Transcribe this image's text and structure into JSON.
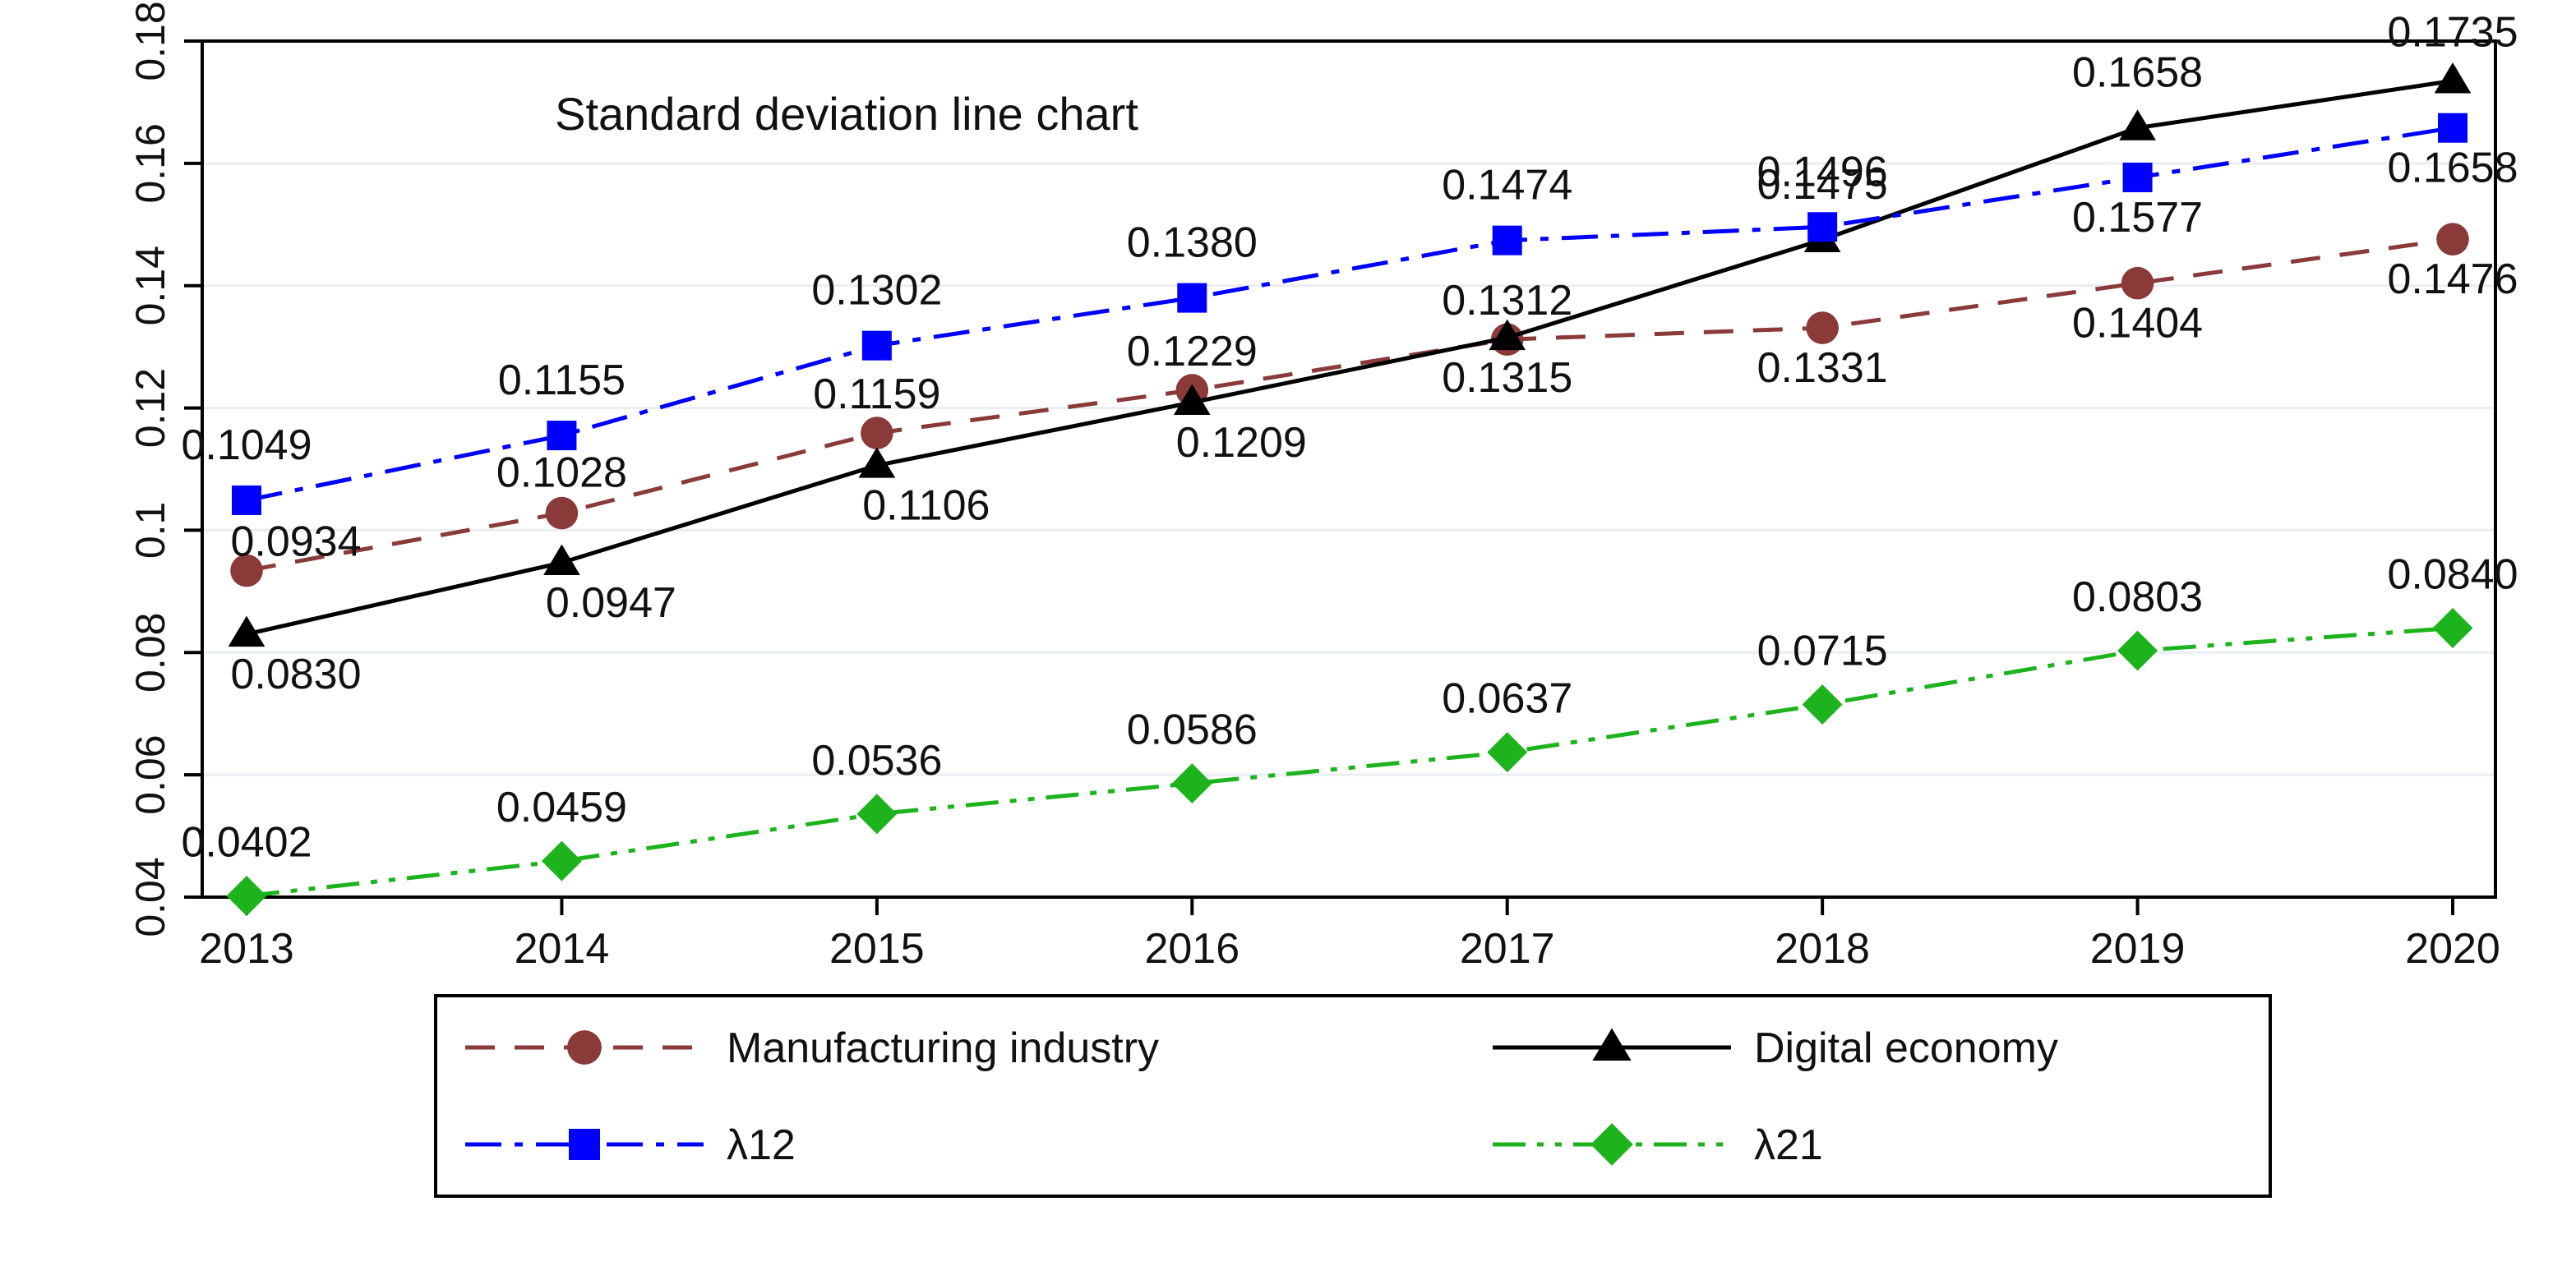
{
  "chart_data": {
    "type": "line",
    "title": "Standard deviation line chart",
    "xlabel": "",
    "ylabel": "",
    "categories": [
      "2013",
      "2014",
      "2015",
      "2016",
      "2017",
      "2018",
      "2019",
      "2020"
    ],
    "ylim": [
      0.04,
      0.18
    ],
    "yticks": [
      0.04,
      0.06,
      0.08,
      0.1,
      0.12,
      0.14,
      0.16,
      0.18
    ],
    "ytick_labels": [
      "0.04",
      "0.06",
      "0.08",
      "0.1",
      "0.12",
      "0.14",
      "0.16",
      "0.18"
    ],
    "grid": true,
    "legend_position": "bottom",
    "series": [
      {
        "key": "manufacturing",
        "name": "Manufacturing industry",
        "color": "#8B3A3A",
        "marker": "circle",
        "line_style": "dash",
        "values": [
          0.0934,
          0.1028,
          0.1159,
          0.1229,
          0.1312,
          0.1331,
          0.1404,
          0.1476
        ],
        "labels": [
          "0.0934",
          "0.1028",
          "0.1159",
          "0.1229",
          "0.1312",
          "0.1331",
          "0.1404",
          "0.1476"
        ]
      },
      {
        "key": "digital",
        "name": "Digital economy",
        "color": "#000000",
        "marker": "triangle",
        "line_style": "solid",
        "values": [
          0.083,
          0.0947,
          0.1106,
          0.1209,
          0.1315,
          0.1475,
          0.1658,
          0.1735
        ],
        "labels": [
          "0.0830",
          "0.0947",
          "0.1106",
          "0.1209",
          "0.1315",
          "0.1475",
          "0.1658",
          "0.1735"
        ]
      },
      {
        "key": "lambda12",
        "name": "λ12",
        "color": "#0000FF",
        "marker": "square",
        "line_style": "dashdot",
        "values": [
          0.1049,
          0.1155,
          0.1302,
          0.138,
          0.1474,
          0.1496,
          0.1577,
          0.1658
        ],
        "labels": [
          "0.1049",
          "0.1155",
          "0.1302",
          "0.1380",
          "0.1474",
          "0.1496",
          "0.1577",
          "0.1658"
        ]
      },
      {
        "key": "lambda21",
        "name": "λ21",
        "color": "#1DB31D",
        "marker": "diamond",
        "line_style": "dashdotdot",
        "values": [
          0.0402,
          0.0459,
          0.0536,
          0.0586,
          0.0637,
          0.0715,
          0.0803,
          0.084
        ],
        "labels": [
          "0.0402",
          "0.0459",
          "0.0536",
          "0.0586",
          "0.0637",
          "0.0715",
          "0.0803",
          "0.0840"
        ]
      }
    ]
  }
}
